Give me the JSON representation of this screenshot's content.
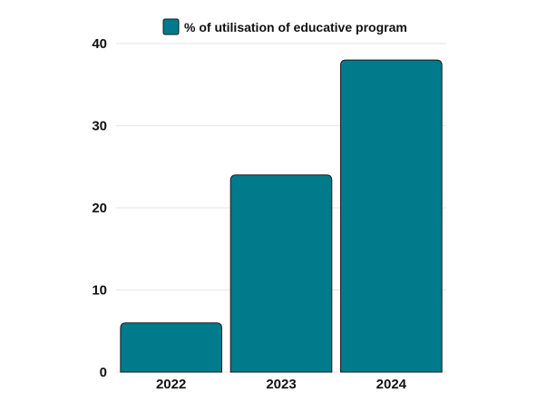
{
  "chart_data": {
    "type": "bar",
    "title": "",
    "xlabel": "",
    "ylabel": "",
    "categories": [
      "2022",
      "2023",
      "2024"
    ],
    "series": [
      {
        "name": "% of utilisation of educative program",
        "values": [
          6,
          24,
          38
        ]
      }
    ],
    "ylim": [
      0,
      40
    ],
    "yticks": [
      "0",
      "10",
      "20",
      "30",
      "40"
    ],
    "grid": true,
    "legend_position": "top-center",
    "bar_color": "#017a8c"
  }
}
